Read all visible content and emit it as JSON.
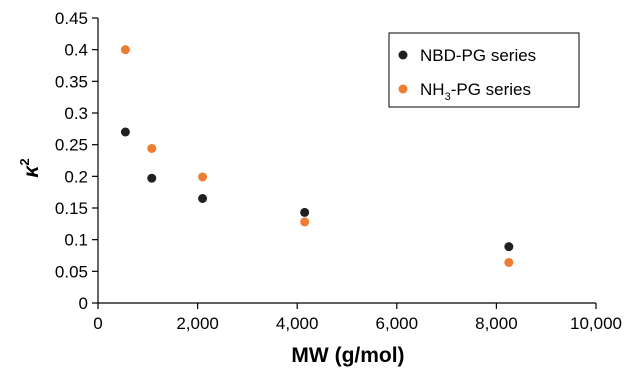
{
  "chart_data": {
    "type": "scatter",
    "xlabel": "MW (g/mol)",
    "ylabel": "κ",
    "ylabel_superscript": "2",
    "xlim": [
      0,
      10000
    ],
    "ylim": [
      0,
      0.45
    ],
    "x_ticks": [
      0,
      2000,
      4000,
      6000,
      8000,
      10000
    ],
    "x_tick_labels": [
      "0",
      "2,000",
      "4,000",
      "6,000",
      "8,000",
      "10,000"
    ],
    "y_ticks": [
      0,
      0.05,
      0.1,
      0.15,
      0.2,
      0.25,
      0.3,
      0.35,
      0.4,
      0.45
    ],
    "y_tick_labels": [
      "0",
      "0.05",
      "0.1",
      "0.15",
      "0.2",
      "0.25",
      "0.3",
      "0.35",
      "0.4",
      "0.45"
    ],
    "grid": false,
    "legend_position": "top-right",
    "series": [
      {
        "name": "NBD-PG series",
        "color": "#231f20",
        "x": [
          550,
          1080,
          2100,
          4150,
          8250
        ],
        "y": [
          0.27,
          0.197,
          0.165,
          0.143,
          0.089
        ]
      },
      {
        "name_main": "NH",
        "name_sub": "3",
        "name_rest": "-PG series",
        "color": "#ee7d31",
        "x": [
          550,
          1080,
          2100,
          4150,
          8250
        ],
        "y": [
          0.4,
          0.244,
          0.199,
          0.128,
          0.064
        ]
      }
    ]
  }
}
